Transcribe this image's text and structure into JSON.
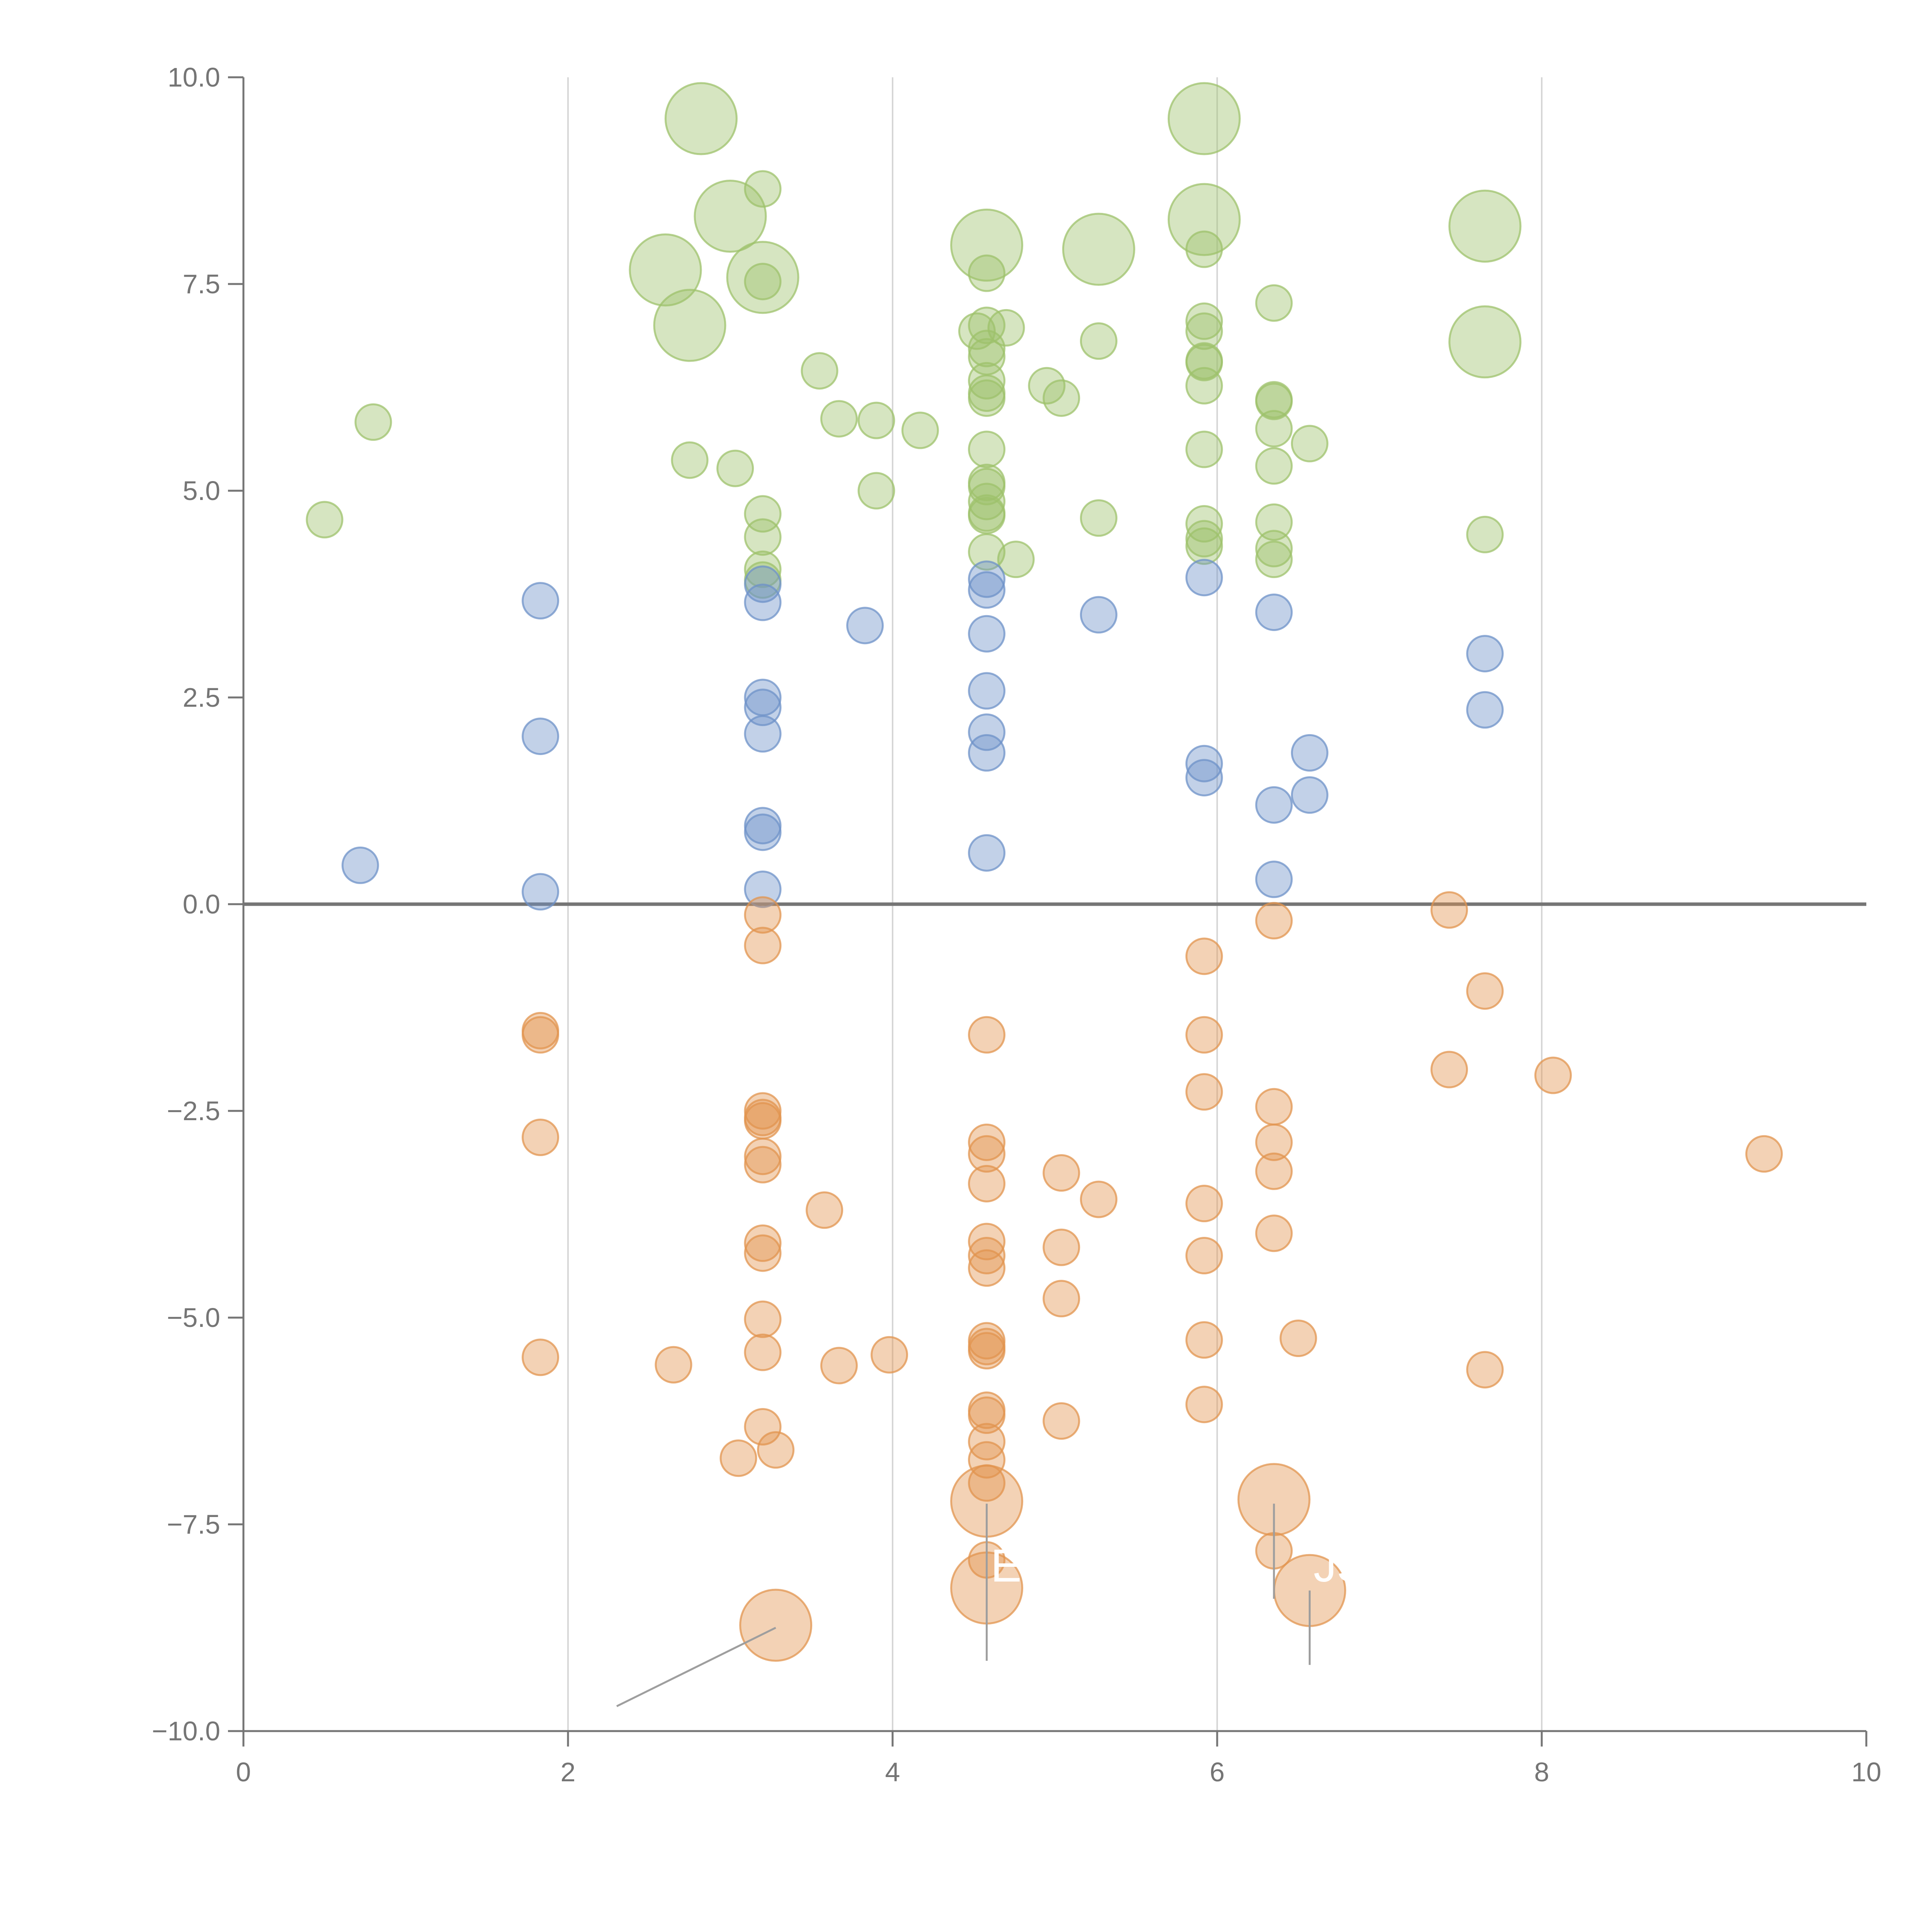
{
  "chart_data": {
    "type": "scatter",
    "title": "",
    "xlabel": "",
    "ylabel": "",
    "xlim": [
      0,
      10
    ],
    "ylim": [
      -10,
      10
    ],
    "x_ticks": [
      "0",
      "2",
      "4",
      "6",
      "8",
      "10"
    ],
    "y_ticks": [
      "10.0",
      "7.5",
      "5.0",
      "2.5",
      "0.0",
      "−2.5",
      "−5.0",
      "−7.5",
      "−10.0"
    ],
    "x_grid": [
      2,
      4,
      6,
      8
    ],
    "zero_line": 0,
    "colors": {
      "green": "#9dc16b",
      "blue": "#6e92c8",
      "orange": "#e2944f",
      "axis": "#757575",
      "grid": "#d6d6d6"
    },
    "series": [
      {
        "name": "green",
        "points": [
          [
            0.5,
            4.65
          ],
          [
            0.8,
            5.83
          ],
          [
            2.75,
            5.37
          ],
          [
            3.03,
            5.27
          ],
          [
            3.55,
            6.45
          ],
          [
            3.67,
            5.87
          ],
          [
            3.9,
            5.85
          ],
          [
            4.17,
            5.73
          ],
          [
            3.9,
            5.0
          ],
          [
            3.2,
            8.65
          ],
          [
            3.2,
            7.53
          ],
          [
            3.2,
            4.72
          ],
          [
            3.2,
            4.44
          ],
          [
            3.2,
            4.05
          ],
          [
            3.2,
            3.92
          ],
          [
            4.58,
            7.63
          ],
          [
            4.52,
            6.93
          ],
          [
            4.58,
            7.0
          ],
          [
            4.7,
            6.97
          ],
          [
            4.58,
            6.72
          ],
          [
            4.58,
            6.62
          ],
          [
            4.58,
            6.33
          ],
          [
            4.58,
            6.18
          ],
          [
            4.58,
            6.12
          ],
          [
            4.58,
            5.5
          ],
          [
            4.58,
            5.1
          ],
          [
            4.58,
            5.05
          ],
          [
            4.58,
            4.87
          ],
          [
            4.58,
            4.73
          ],
          [
            4.58,
            4.7
          ],
          [
            4.58,
            4.26
          ],
          [
            4.76,
            4.17
          ],
          [
            4.95,
            6.27
          ],
          [
            5.04,
            6.12
          ],
          [
            5.27,
            6.81
          ],
          [
            5.27,
            4.67
          ],
          [
            5.92,
            7.92
          ],
          [
            5.92,
            7.05
          ],
          [
            5.92,
            6.93
          ],
          [
            5.92,
            6.57
          ],
          [
            5.92,
            6.55
          ],
          [
            5.92,
            6.27
          ],
          [
            5.92,
            5.5
          ],
          [
            5.92,
            4.6
          ],
          [
            5.92,
            4.42
          ],
          [
            5.92,
            4.33
          ],
          [
            6.35,
            7.27
          ],
          [
            6.35,
            6.1
          ],
          [
            6.35,
            6.08
          ],
          [
            6.35,
            5.75
          ],
          [
            6.35,
            5.3
          ],
          [
            6.57,
            5.57
          ],
          [
            6.35,
            4.62
          ],
          [
            6.35,
            4.3
          ],
          [
            6.35,
            4.17
          ],
          [
            7.65,
            4.47
          ]
        ],
        "big_points": [
          [
            2.82,
            9.5
          ],
          [
            3.0,
            8.32
          ],
          [
            2.6,
            7.67
          ],
          [
            3.2,
            7.58
          ],
          [
            2.75,
            7.0
          ],
          [
            4.58,
            7.97
          ],
          [
            5.27,
            7.92
          ],
          [
            5.92,
            9.5
          ],
          [
            5.92,
            8.28
          ],
          [
            7.65,
            8.2
          ],
          [
            7.65,
            6.8
          ]
        ]
      },
      {
        "name": "blue",
        "points": [
          [
            0.72,
            0.47
          ],
          [
            1.83,
            3.67
          ],
          [
            1.83,
            2.03
          ],
          [
            1.83,
            0.15
          ],
          [
            3.2,
            3.87
          ],
          [
            3.2,
            3.65
          ],
          [
            3.2,
            2.5
          ],
          [
            3.2,
            2.38
          ],
          [
            3.2,
            2.06
          ],
          [
            3.2,
            0.95
          ],
          [
            3.2,
            0.87
          ],
          [
            3.2,
            0.18
          ],
          [
            3.83,
            3.37
          ],
          [
            4.58,
            3.93
          ],
          [
            4.58,
            3.8
          ],
          [
            4.58,
            3.27
          ],
          [
            4.58,
            2.58
          ],
          [
            4.58,
            2.08
          ],
          [
            4.58,
            1.83
          ],
          [
            4.58,
            0.62
          ],
          [
            5.27,
            3.5
          ],
          [
            5.92,
            3.95
          ],
          [
            5.92,
            1.7
          ],
          [
            5.92,
            1.53
          ],
          [
            6.35,
            3.53
          ],
          [
            6.35,
            1.2
          ],
          [
            6.35,
            0.3
          ],
          [
            6.57,
            1.83
          ],
          [
            6.57,
            1.32
          ],
          [
            7.65,
            3.03
          ],
          [
            7.65,
            2.35
          ]
        ],
        "big_points": []
      },
      {
        "name": "orange",
        "points": [
          [
            1.83,
            -1.53
          ],
          [
            1.83,
            -1.58
          ],
          [
            1.83,
            -2.82
          ],
          [
            1.83,
            -5.48
          ],
          [
            2.65,
            -5.57
          ],
          [
            3.2,
            -0.13
          ],
          [
            3.2,
            -0.5
          ],
          [
            3.2,
            -2.5
          ],
          [
            3.2,
            -2.58
          ],
          [
            3.2,
            -2.62
          ],
          [
            3.2,
            -3.05
          ],
          [
            3.2,
            -3.15
          ],
          [
            3.2,
            -4.1
          ],
          [
            3.2,
            -4.22
          ],
          [
            3.2,
            -5.02
          ],
          [
            3.2,
            -5.42
          ],
          [
            3.2,
            -6.32
          ],
          [
            3.05,
            -6.7
          ],
          [
            3.28,
            -6.6
          ],
          [
            3.58,
            -3.7
          ],
          [
            3.67,
            -5.58
          ],
          [
            3.98,
            -5.45
          ],
          [
            4.58,
            -1.58
          ],
          [
            4.58,
            -2.88
          ],
          [
            4.58,
            -3.02
          ],
          [
            4.58,
            -3.38
          ],
          [
            4.58,
            -4.08
          ],
          [
            4.58,
            -4.25
          ],
          [
            4.58,
            -4.4
          ],
          [
            4.58,
            -5.28
          ],
          [
            4.58,
            -5.35
          ],
          [
            4.58,
            -5.4
          ],
          [
            4.58,
            -6.12
          ],
          [
            4.58,
            -6.18
          ],
          [
            4.58,
            -6.5
          ],
          [
            4.58,
            -6.72
          ],
          [
            4.58,
            -7.0
          ],
          [
            4.58,
            -7.93
          ],
          [
            5.04,
            -3.25
          ],
          [
            5.27,
            -3.57
          ],
          [
            5.04,
            -4.15
          ],
          [
            5.04,
            -4.77
          ],
          [
            5.04,
            -6.25
          ],
          [
            5.92,
            -0.63
          ],
          [
            5.92,
            -1.58
          ],
          [
            5.92,
            -2.27
          ],
          [
            5.92,
            -3.62
          ],
          [
            5.92,
            -4.25
          ],
          [
            5.92,
            -5.27
          ],
          [
            5.92,
            -6.05
          ],
          [
            6.35,
            -0.2
          ],
          [
            6.35,
            -2.45
          ],
          [
            6.35,
            -2.88
          ],
          [
            6.35,
            -3.23
          ],
          [
            6.35,
            -3.98
          ],
          [
            6.5,
            -5.25
          ],
          [
            6.35,
            -7.82
          ],
          [
            7.43,
            -0.07
          ],
          [
            7.43,
            -2.0
          ],
          [
            7.65,
            -1.05
          ],
          [
            7.65,
            -5.63
          ],
          [
            8.07,
            -2.07
          ],
          [
            9.37,
            -3.02
          ]
        ],
        "big_points": [
          [
            3.28,
            -8.72
          ],
          [
            4.58,
            -7.22
          ],
          [
            4.58,
            -8.27
          ],
          [
            6.35,
            -7.2
          ],
          [
            6.57,
            -8.3
          ]
        ]
      }
    ],
    "annotations": [
      {
        "text": "E",
        "x": 4.58,
        "y": -8.0
      },
      {
        "text": "JS",
        "x": 6.57,
        "y": -8.0
      }
    ]
  }
}
